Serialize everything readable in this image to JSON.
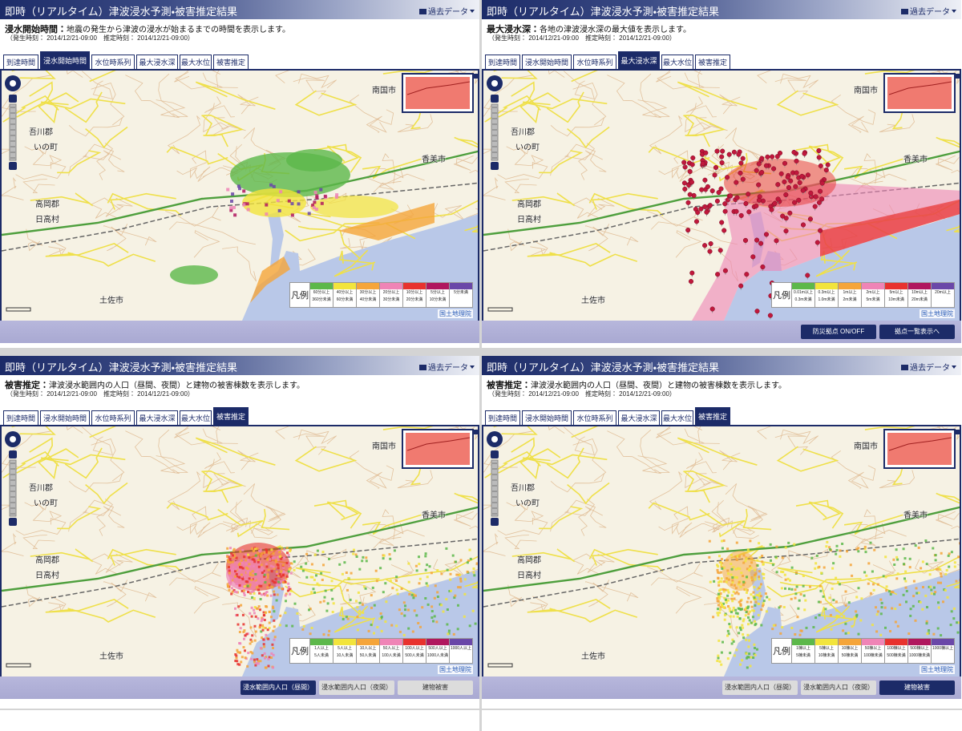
{
  "panels": [
    {
      "title": "即時（リアルタイム）津波浸水予測・被害推定結果",
      "data_menu": "過去データ",
      "heading": "浸水開始時間：",
      "description": "地震の発生から津波の浸水が始まるまでの時間を表示します。",
      "times": "（発生時刻： 2014/12/21-09:00　推定時刻： 2014/12/21-09:00）",
      "tabs": [
        "到達時間",
        "浸水開始時間",
        "水位時系列",
        "最大浸水深",
        "最大水位",
        "被害推定"
      ],
      "active_tab": 1,
      "map_labels": [
        "南国市",
        "香美市",
        "吾川郡",
        "いの町",
        "高岡郡",
        "日高村",
        "土佐市",
        "国土地理院"
      ],
      "legend": {
        "title": "凡例",
        "items": [
          {
            "color": "#5cb84a",
            "label": [
              "60分以上",
              "360分未満"
            ]
          },
          {
            "color": "#f2e43c",
            "label": [
              "40分以上",
              "60分未満"
            ]
          },
          {
            "color": "#f5a53a",
            "label": [
              "30分以上",
              "40分未満"
            ]
          },
          {
            "color": "#ef84b6",
            "label": [
              "20分以上",
              "30分未満"
            ]
          },
          {
            "color": "#e8322e",
            "label": [
              "10分以上",
              "20分未満"
            ]
          },
          {
            "color": "#b0165e",
            "label": [
              "5分以上",
              "10分未満"
            ]
          },
          {
            "color": "#6a47a8",
            "label": [
              "5分未満"
            ]
          }
        ]
      },
      "buttons": []
    },
    {
      "title": "即時（リアルタイム）津波浸水予測・被害推定結果",
      "data_menu": "過去データ",
      "heading": "最大浸水深：",
      "description": "各地の津波浸水深の最大値を表示します。",
      "times": "（発生時刻： 2014/12/21-09:00　推定時刻： 2014/12/21-09:00）",
      "tabs": [
        "到達時間",
        "浸水開始時間",
        "水位時系列",
        "最大浸水深",
        "最大水位",
        "被害推定"
      ],
      "active_tab": 3,
      "map_labels": [
        "南国市",
        "香美市",
        "吾川郡",
        "いの町",
        "高岡郡",
        "日高村",
        "土佐市",
        "国土地理院"
      ],
      "legend": {
        "title": "凡例",
        "items": [
          {
            "color": "#5cb84a",
            "label": [
              "0.01m以上",
              "0.3m未満"
            ]
          },
          {
            "color": "#f2e43c",
            "label": [
              "0.3m以上",
              "1.0m未満"
            ]
          },
          {
            "color": "#f5a53a",
            "label": [
              "1m以上",
              "2m未満"
            ]
          },
          {
            "color": "#ef84b6",
            "label": [
              "2m以上",
              "5m未満"
            ]
          },
          {
            "color": "#e8322e",
            "label": [
              "5m以上",
              "10m未満"
            ]
          },
          {
            "color": "#b0165e",
            "label": [
              "10m以上",
              "20m未満"
            ]
          },
          {
            "color": "#6a47a8",
            "label": [
              "20m以上"
            ]
          }
        ]
      },
      "buttons": [
        {
          "label": "防災拠点 ON/OFF",
          "active": true
        },
        {
          "label": "拠点一覧表示へ",
          "active": true
        }
      ]
    },
    {
      "title": "即時（リアルタイム）津波浸水予測・被害推定結果",
      "data_menu": "過去データ",
      "heading": "被害推定：",
      "description": "津波浸水範囲内の人口（昼間、夜間）と建物の被害棟数を表示します。",
      "times": "（発生時刻： 2014/12/21-09:00　推定時刻： 2014/12/21-09:00）",
      "tabs": [
        "到達時間",
        "浸水開始時間",
        "水位時系列",
        "最大浸水深",
        "最大水位",
        "被害推定"
      ],
      "active_tab": 5,
      "map_labels": [
        "南国市",
        "香美市",
        "吾川郡",
        "いの町",
        "高岡郡",
        "日高村",
        "土佐市",
        "国土地理院"
      ],
      "legend": {
        "title": "凡例",
        "items": [
          {
            "color": "#5cb84a",
            "label": [
              "1人以上",
              "5人未満"
            ]
          },
          {
            "color": "#f2e43c",
            "label": [
              "5人以上",
              "10人未満"
            ]
          },
          {
            "color": "#f5a53a",
            "label": [
              "10人以上",
              "50人未満"
            ]
          },
          {
            "color": "#ef84b6",
            "label": [
              "50人以上",
              "100人未満"
            ]
          },
          {
            "color": "#e8322e",
            "label": [
              "100人以上",
              "500人未満"
            ]
          },
          {
            "color": "#b0165e",
            "label": [
              "500人以上",
              "1000人未満"
            ]
          },
          {
            "color": "#6a47a8",
            "label": [
              "1000人以上"
            ]
          }
        ]
      },
      "buttons": [
        {
          "label": "浸水範囲内人口（昼間）",
          "active": true
        },
        {
          "label": "浸水範囲内人口（夜間）",
          "active": false
        },
        {
          "label": "建物被害",
          "active": false
        }
      ]
    },
    {
      "title": "即時（リアルタイム）津波浸水予測・被害推定結果",
      "data_menu": "過去データ",
      "heading": "被害推定：",
      "description": "津波浸水範囲内の人口（昼間、夜間）と建物の被害棟数を表示します。",
      "times": "（発生時刻： 2014/12/21-09:00　推定時刻： 2014/12/21-09:00）",
      "tabs": [
        "到達時間",
        "浸水開始時間",
        "水位時系列",
        "最大浸水深",
        "最大水位",
        "被害推定"
      ],
      "active_tab": 5,
      "map_labels": [
        "南国市",
        "香美市",
        "吾川郡",
        "いの町",
        "高岡郡",
        "日高村",
        "土佐市",
        "国土地理院"
      ],
      "legend": {
        "title": "凡例",
        "items": [
          {
            "color": "#5cb84a",
            "label": [
              "1棟以上",
              "5棟未満"
            ]
          },
          {
            "color": "#f2e43c",
            "label": [
              "5棟以上",
              "10棟未満"
            ]
          },
          {
            "color": "#f5a53a",
            "label": [
              "10棟以上",
              "50棟未満"
            ]
          },
          {
            "color": "#ef84b6",
            "label": [
              "50棟以上",
              "100棟未満"
            ]
          },
          {
            "color": "#e8322e",
            "label": [
              "100棟以上",
              "500棟未満"
            ]
          },
          {
            "color": "#b0165e",
            "label": [
              "500棟以上",
              "1000棟未満"
            ]
          },
          {
            "color": "#6a47a8",
            "label": [
              "1000棟以上"
            ]
          }
        ]
      },
      "buttons": [
        {
          "label": "浸水範囲内人口（昼間）",
          "active": false
        },
        {
          "label": "浸水範囲内人口（夜間）",
          "active": false
        },
        {
          "label": "建物被害",
          "active": true
        }
      ]
    }
  ]
}
